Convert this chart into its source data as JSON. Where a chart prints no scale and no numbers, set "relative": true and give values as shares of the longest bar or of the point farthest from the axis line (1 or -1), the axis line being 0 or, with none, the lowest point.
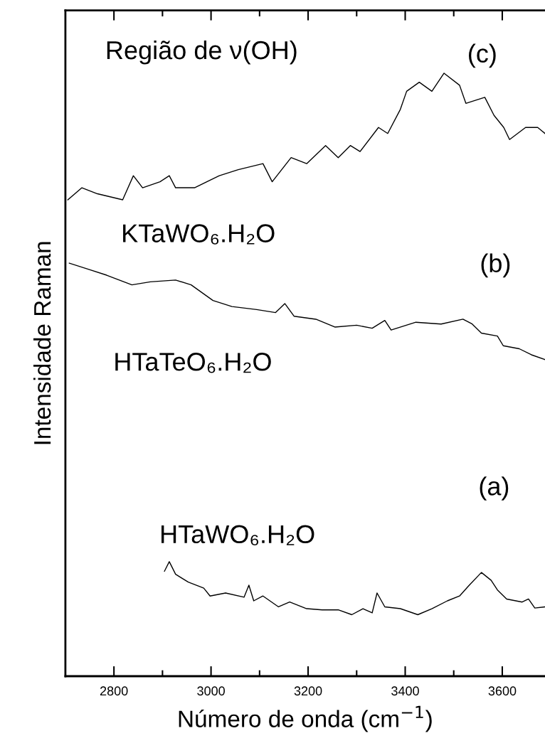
{
  "chart_data": {
    "type": "line",
    "relative": true,
    "xlabel": "Número de onda (cm$^{−1}$)",
    "ylabel": "Intensidade Raman",
    "x": [
      2705,
      2734,
      2766,
      2818,
      2840,
      2859,
      2895,
      2914,
      2927,
      2966,
      3017,
      3056,
      3107,
      3126,
      3165,
      3197,
      3236,
      3262,
      3287,
      3307,
      3345,
      3364,
      3390,
      3403,
      3429,
      3455,
      3480,
      3512,
      3525,
      3564,
      3583,
      3603,
      3615,
      3648,
      3673,
      3688
    ],
    "series": [
      {
        "color": "#000000",
        "values": [
          0.79,
          0.81,
          0.8,
          0.79,
          0.83,
          0.81,
          0.82,
          0.83,
          0.81,
          0.81,
          0.83,
          0.84,
          0.85,
          0.82,
          0.86,
          0.85,
          0.88,
          0.86,
          0.88,
          0.87,
          0.91,
          0.9,
          0.94,
          0.97,
          0.985,
          0.97,
          1,
          0.98,
          0.95,
          0.96,
          0.93,
          0.91,
          0.89,
          0.91,
          0.91,
          0.9
        ]
      },
      {
        "color": "#000000",
        "x": [
          2708,
          2747,
          2785,
          2837,
          2875,
          2927,
          2959,
          3004,
          3043,
          3094,
          3133,
          3152,
          3171,
          3216,
          3255,
          3300,
          3332,
          3358,
          3371,
          3422,
          3474,
          3519,
          3538,
          3557,
          3590,
          3602,
          3635,
          3660,
          3688
        ],
        "values": [
          0.685,
          0.675,
          0.665,
          0.649,
          0.654,
          0.657,
          0.649,
          0.623,
          0.613,
          0.608,
          0.603,
          0.618,
          0.597,
          0.592,
          0.579,
          0.582,
          0.577,
          0.59,
          0.574,
          0.587,
          0.584,
          0.592,
          0.584,
          0.569,
          0.564,
          0.548,
          0.543,
          0.533,
          0.525
        ]
      },
      {
        "color": "#000000",
        "x": [
          2904,
          2914,
          2927,
          2953,
          2985,
          2998,
          3030,
          3068,
          3078,
          3088,
          3107,
          3139,
          3162,
          3197,
          3229,
          3262,
          3290,
          3313,
          3332,
          3342,
          3358,
          3390,
          3426,
          3455,
          3487,
          3512,
          3532,
          3557,
          3577,
          3590,
          3609,
          3641,
          3654,
          3667,
          3688
        ],
        "values": [
          0.174,
          0.19,
          0.169,
          0.156,
          0.146,
          0.133,
          0.138,
          0.131,
          0.151,
          0.125,
          0.133,
          0.115,
          0.123,
          0.112,
          0.11,
          0.11,
          0.102,
          0.112,
          0.105,
          0.138,
          0.115,
          0.112,
          0.102,
          0.112,
          0.125,
          0.133,
          0.151,
          0.172,
          0.159,
          0.143,
          0.128,
          0.123,
          0.128,
          0.113,
          0.115
        ]
      }
    ],
    "xlim": [
      2700,
      3688
    ],
    "xticks": [
      2800,
      {
        "value": 2900,
        "label": null
      },
      3000,
      {
        "value": 3100,
        "label": null
      },
      3200,
      {
        "value": 3300,
        "label": null
      },
      3400,
      {
        "value": 3500,
        "label": null
      },
      3600
    ],
    "annotations": [
      "Região de ν(OH)",
      "(c)",
      "KTaWO₆.H₂O",
      "(b)",
      "HTaTeO₆.H₂O",
      "(a)",
      "HTaWO₆.H₂O"
    ],
    "grid": false,
    "legend": false,
    "marker": "none",
    "line_style": "solid"
  }
}
